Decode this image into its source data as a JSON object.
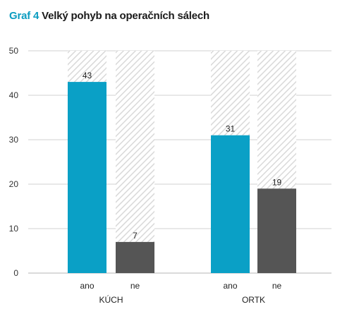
{
  "title": {
    "prefix": "Graf 4",
    "text": "Velký pohyb na operačních sálech"
  },
  "colors": {
    "ano": "#0aa0c6",
    "ne": "#555555",
    "hatch": "#d9d9d9",
    "grid": "#d0d0d0",
    "title_prefix": "#0b9cc0"
  },
  "chart_data": {
    "type": "bar",
    "title": "Graf 4 Velký pohyb na operačních sálech",
    "xlabel": "",
    "ylabel": "",
    "ylim": [
      0,
      50
    ],
    "yticks": [
      0,
      10,
      20,
      30,
      40,
      50
    ],
    "grid": true,
    "background_bars": "hatched to max (50)",
    "groups": [
      {
        "name": "KÚCH",
        "categories": [
          "ano",
          "ne"
        ],
        "values": [
          43,
          7
        ]
      },
      {
        "name": "ORTK",
        "categories": [
          "ano",
          "ne"
        ],
        "values": [
          31,
          19
        ]
      }
    ]
  }
}
